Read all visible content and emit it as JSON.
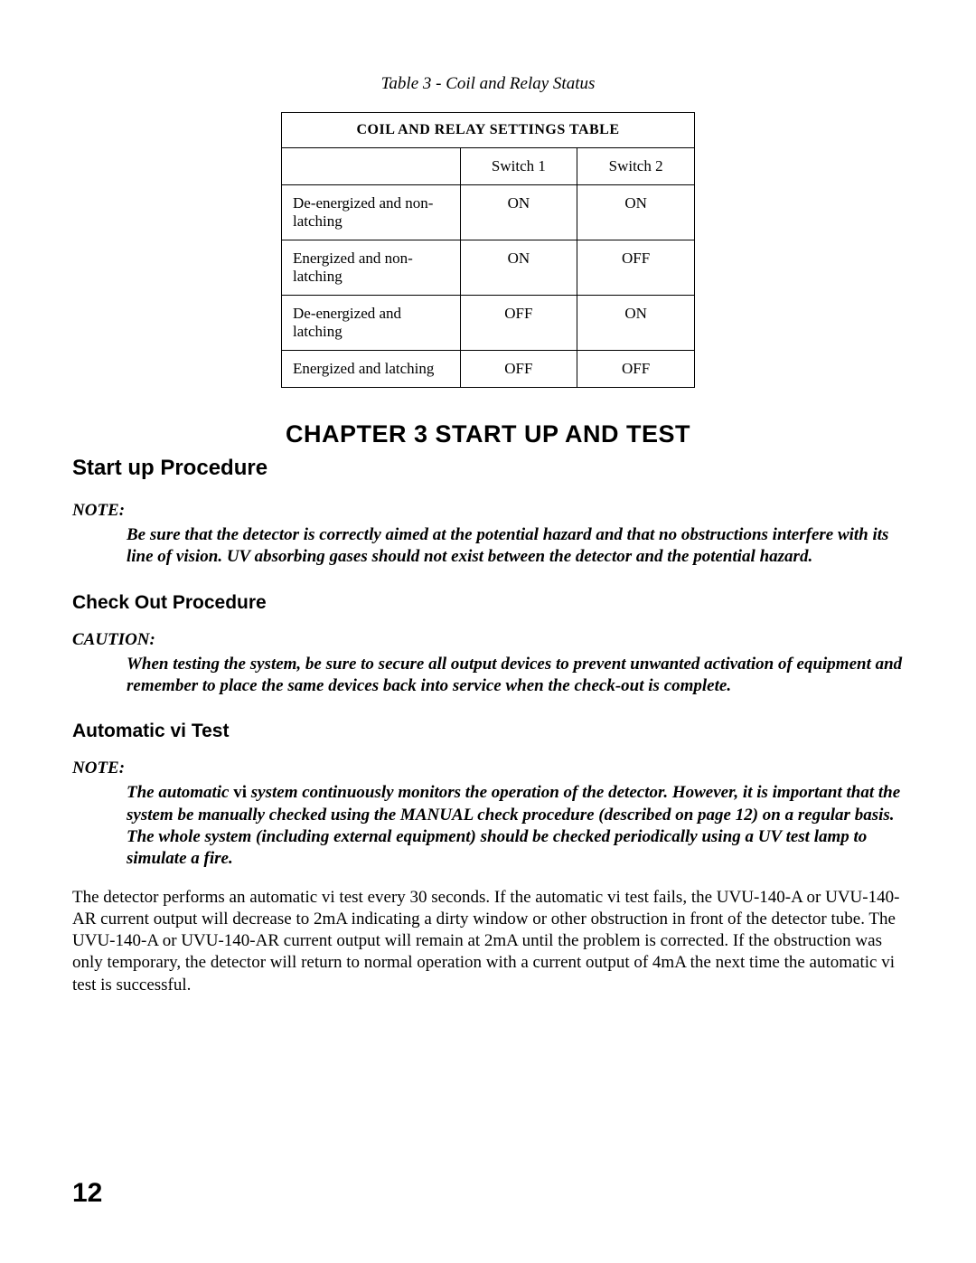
{
  "caption": "Table 3 - Coil and Relay Status",
  "table": {
    "header_full": "COIL AND RELAY SETTINGS TABLE",
    "col_blank": "",
    "col_sw1": "Switch 1",
    "col_sw2": "Switch 2",
    "rows": [
      {
        "desc": "De-energized and non-latching",
        "sw1": "ON",
        "sw2": "ON"
      },
      {
        "desc": "Energized and non-latching",
        "sw1": "ON",
        "sw2": "OFF"
      },
      {
        "desc": "De-energized and latching",
        "sw1": "OFF",
        "sw2": "ON"
      },
      {
        "desc": "Energized and latching",
        "sw1": "OFF",
        "sw2": "OFF"
      }
    ]
  },
  "chapter_title": "CHAPTER 3 START UP AND TEST",
  "sections": {
    "start_up": {
      "heading": "Start up Procedure",
      "note_label": "NOTE:",
      "note_body": "Be sure that the detector is correctly aimed at the potential hazard and that no obstructions interfere with its line of vision. UV absorbing gases should not exist between the detector and the potential hazard."
    },
    "check_out": {
      "heading": "Check Out Procedure",
      "caution_label": "CAUTION:",
      "caution_body": "When testing the system, be sure to secure all output devices to prevent unwanted activation of equipment and remember to place the same devices back into service when the check-out is complete."
    },
    "auto_vi": {
      "heading": "Automatic vi Test",
      "note_label": "NOTE:",
      "note_prefix": "The automatic ",
      "note_bold_roman": "vi",
      "note_suffix": " system continuously monitors the operation of the detector. However, it is important that the system be manually checked using the MANUAL check procedure (described on page 12) on a regular basis. The whole system (including external equipment) should be checked periodically using a UV test lamp to simulate a fire.",
      "body": "The detector performs an automatic vi test every 30 seconds. If the automatic vi test fails, the UVU-140-A or UVU-140-AR current output will decrease to 2mA indicating a dirty window or other obstruction in front of the detector tube. The UVU-140-A or UVU-140-AR current output will remain at 2mA until the problem is corrected. If the obstruction was only temporary, the detector will return to normal operation with a current output of 4mA the next time the automatic vi test is successful."
    }
  },
  "page_number": "12",
  "colors": {
    "text": "#000000",
    "background": "#ffffff",
    "border": "#000000"
  },
  "typography": {
    "body_family": "Times New Roman",
    "heading_family": "Arial",
    "body_size_pt": 14,
    "h1_size_pt": 18,
    "h2_size_pt": 16,
    "chapter_size_pt": 20,
    "page_num_size_pt": 22
  }
}
